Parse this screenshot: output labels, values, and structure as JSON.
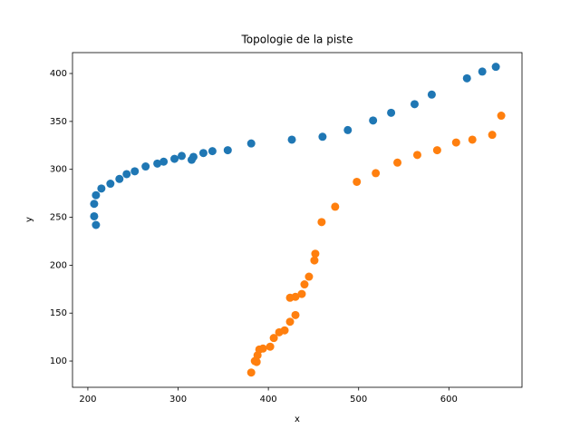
{
  "chart_data": {
    "type": "scatter",
    "title": "Topologie de la piste",
    "x_label": "x",
    "y_label": "y",
    "xlim": [
      183,
      681
    ],
    "ylim": [
      72.6,
      421.8
    ],
    "xticks": [
      200,
      300,
      400,
      500,
      600
    ],
    "yticks": [
      100,
      150,
      200,
      250,
      300,
      350,
      400
    ],
    "grid": false,
    "series": [
      {
        "color": "#1f77b4",
        "x": [
          209,
          207,
          207,
          209,
          215,
          225,
          235,
          243,
          252,
          264,
          277,
          284,
          296,
          304,
          315,
          317,
          328,
          338,
          355,
          381,
          426,
          460,
          488,
          516,
          536,
          562,
          581,
          620,
          637,
          652
        ],
        "values": [
          242,
          251,
          264,
          273,
          280,
          285,
          290,
          295,
          298,
          303,
          306,
          308,
          311,
          314,
          310,
          313,
          317,
          319,
          320,
          327,
          331,
          334,
          341,
          351,
          359,
          368,
          378,
          395,
          402,
          407
        ]
      },
      {
        "color": "#ff7f0e",
        "x": [
          381,
          385,
          387,
          388,
          390,
          394,
          402,
          406,
          412,
          418,
          424,
          430,
          424,
          430,
          437,
          440,
          445,
          451,
          452,
          459,
          474,
          498,
          519,
          543,
          565,
          587,
          608,
          626,
          648,
          658
        ],
        "values": [
          88,
          100,
          99,
          106,
          112,
          113,
          115,
          124,
          130,
          132,
          141,
          148,
          166,
          167,
          170,
          180,
          188,
          205,
          212,
          245,
          261,
          287,
          296,
          307,
          315,
          320,
          328,
          331,
          336,
          356
        ]
      }
    ]
  }
}
